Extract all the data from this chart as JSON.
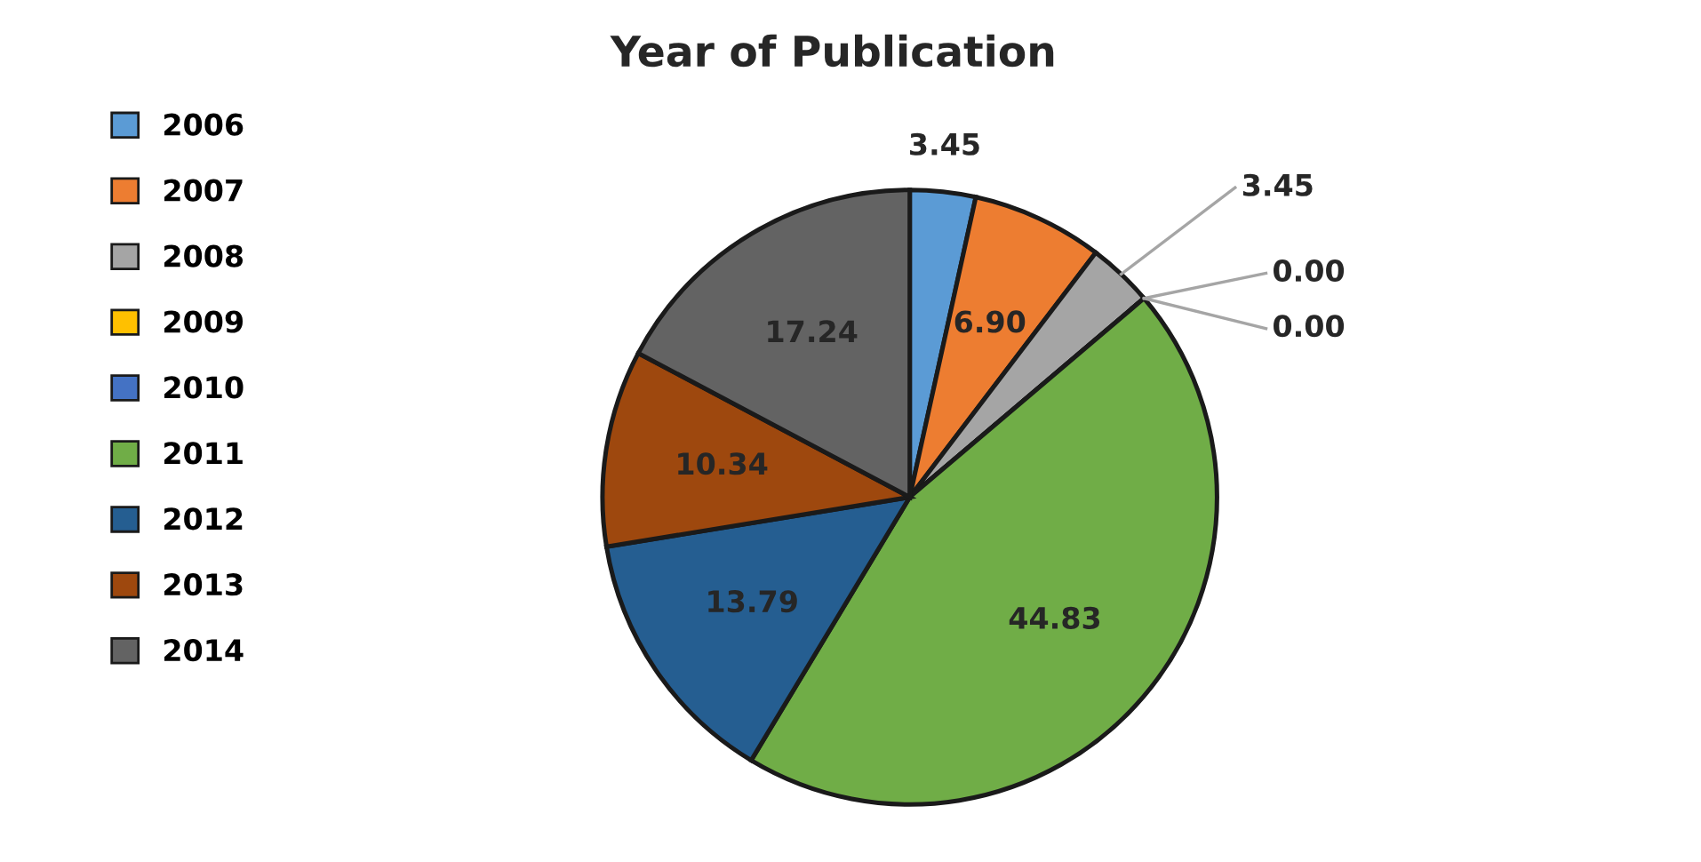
{
  "chart_data": {
    "type": "pie",
    "title": "Year of Publication",
    "categories": [
      "2006",
      "2007",
      "2008",
      "2009",
      "2010",
      "2011",
      "2012",
      "2013",
      "2014"
    ],
    "values": [
      3.45,
      6.9,
      3.45,
      0.0,
      0.0,
      44.83,
      13.79,
      10.34,
      17.24
    ],
    "value_labels": [
      "3.45",
      "6.90",
      "3.45",
      "0.00",
      "0.00",
      "44.83",
      "13.79",
      "10.34",
      "17.24"
    ],
    "colors": [
      "#5b9bd5",
      "#ed7d31",
      "#a5a5a5",
      "#ffc000",
      "#4472c4",
      "#70ad47",
      "#255e91",
      "#9e480e",
      "#636363"
    ],
    "legend": "left"
  }
}
